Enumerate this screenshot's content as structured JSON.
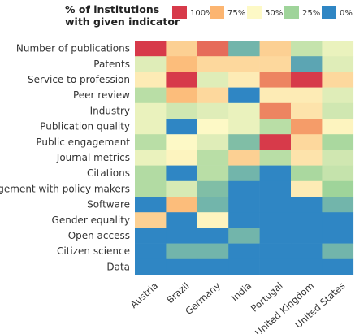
{
  "chart_data": {
    "type": "heatmap",
    "legend": {
      "title_lines": [
        "% of institutions",
        "with given indicator"
      ],
      "labels": [
        "100%",
        "75%",
        "50%",
        "25%",
        "0%"
      ],
      "placement": "top-right"
    },
    "colorscale": {
      "stops": [
        0,
        25,
        50,
        75,
        100
      ],
      "colors": [
        "#2f86c4",
        "#9fd49a",
        "#fdf9c6",
        "#fcb571",
        "#d73a4a"
      ]
    },
    "columns": [
      "Austria",
      "Brazil",
      "Germany",
      "India",
      "Portugal",
      "United Kingdom",
      "United States"
    ],
    "rows": [
      "Number of publications",
      "Patents",
      "Service to profession",
      "Peer review",
      "Industry",
      "Publication quality",
      "Public engagement",
      "Journal metrics",
      "Citations",
      "Engagement with policy makers",
      "Software",
      "Gender equality",
      "Open access",
      "Citizen science",
      "Data"
    ],
    "values": [
      [
        100,
        65,
        90,
        15,
        65,
        35,
        45
      ],
      [
        42,
        72,
        62,
        62,
        62,
        10,
        42
      ],
      [
        55,
        100,
        42,
        55,
        85,
        100,
        62
      ],
      [
        32,
        72,
        62,
        0,
        55,
        55,
        42
      ],
      [
        45,
        38,
        42,
        45,
        85,
        58,
        38
      ],
      [
        45,
        0,
        50,
        45,
        32,
        80,
        52
      ],
      [
        32,
        50,
        42,
        18,
        100,
        62,
        28
      ],
      [
        45,
        52,
        32,
        65,
        32,
        58,
        38
      ],
      [
        30,
        0,
        32,
        15,
        0,
        28,
        35
      ],
      [
        30,
        40,
        18,
        0,
        0,
        55,
        25
      ],
      [
        0,
        72,
        15,
        0,
        0,
        0,
        15
      ],
      [
        65,
        0,
        52,
        0,
        0,
        0,
        0
      ],
      [
        0,
        0,
        0,
        15,
        0,
        0,
        0
      ],
      [
        0,
        15,
        15,
        0,
        0,
        0,
        15
      ],
      [
        0,
        0,
        0,
        0,
        0,
        0,
        0
      ]
    ]
  }
}
